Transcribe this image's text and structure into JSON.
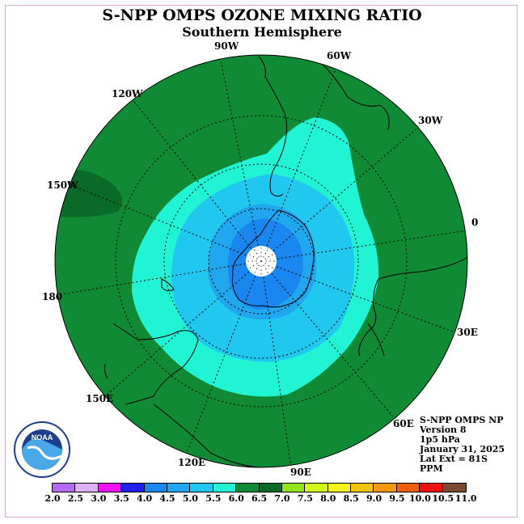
{
  "title": "S-NPP OMPS OZONE MIXING RATIO",
  "subtitle": "Southern Hemisphere",
  "longitude_labels": {
    "w90": "90W",
    "w60": "60W",
    "w30": "30W",
    "lon0": "0",
    "e30": "30E",
    "e60": "60E",
    "e90": "90E",
    "e120": "120E",
    "e150": "150E",
    "lon180": "180",
    "w150": "150W",
    "w120": "120W"
  },
  "info": {
    "line1": "S-NPP OMPS NP",
    "line2": "Version 8",
    "line3": "1p5 hPa",
    "line4": "January 31, 2025",
    "line5": "Lat Ext = 81S",
    "line6": "PPM"
  },
  "logo": {
    "name": "NOAA"
  },
  "colorbar": {
    "colors": [
      "#b36bef",
      "#dcb0f3",
      "#ef14ef",
      "#2020f0",
      "#1a86ef",
      "#20a7ef",
      "#20c8f0",
      "#20f4d4",
      "#108a35",
      "#0a6a28",
      "#94e41a",
      "#d2f91a",
      "#f4f41a",
      "#f0c30e",
      "#f09810",
      "#f05c10",
      "#f00f0f",
      "#7a4a32"
    ],
    "tick_labels": [
      "2.0",
      "2.5",
      "3.0",
      "3.5",
      "4.0",
      "4.5",
      "5.0",
      "5.5",
      "6.0",
      "6.5",
      "7.0",
      "7.5",
      "8.0",
      "8.5",
      "9.0",
      "9.5",
      "10.0",
      "10.5",
      "11.0"
    ]
  },
  "map_colors": {
    "outer": "#108a35",
    "high": "#0a6a28",
    "teal": "#20f4d4",
    "light_blue": "#20c8f0",
    "mid_blue": "#20a7ef",
    "blue": "#1a86ef",
    "pole": "#ffffff"
  }
}
